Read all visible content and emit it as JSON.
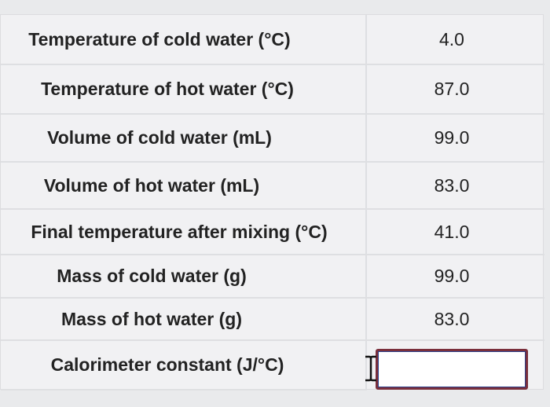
{
  "table": {
    "rows": [
      [
        "Temperature of cold water (°C)",
        "4.0"
      ],
      [
        "Temperature of hot water (°C)",
        "87.0"
      ],
      [
        "Volume of cold water (mL)",
        "99.0"
      ],
      [
        "Volume of hot water (mL)",
        "83.0"
      ],
      [
        "Final temperature after mixing (°C)",
        "41.0"
      ],
      [
        "Mass of cold water (g)",
        "99.0"
      ],
      [
        "Mass of hot water (g)",
        "83.0"
      ],
      [
        "Calorimeter constant (J/°C)"
      ]
    ]
  }
}
